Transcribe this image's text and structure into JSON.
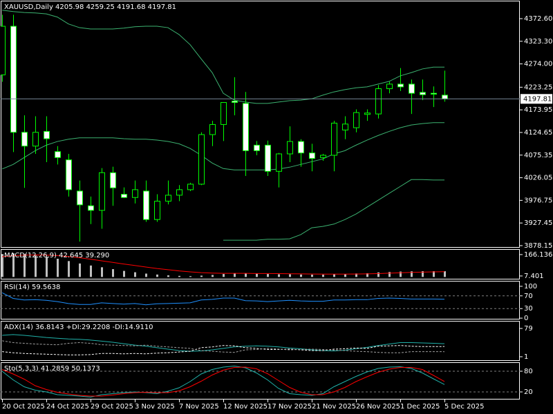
{
  "chart_data": [
    {
      "type": "candlestick",
      "title": "XAUUSD,Daily  4205.98 4259.25 4191.68 4197.81",
      "categories": [
        "20 Oct 2025",
        null,
        null,
        null,
        "24 Oct 2025",
        null,
        null,
        null,
        "29 Oct 2025",
        null,
        null,
        null,
        "3 Nov 2025",
        null,
        null,
        null,
        "7 Nov 2025",
        null,
        null,
        null,
        "12 Nov 2025",
        null,
        null,
        null,
        "17 Nov 2025",
        null,
        null,
        null,
        "21 Nov 2025",
        null,
        null,
        null,
        "26 Nov 2025",
        null,
        null,
        null,
        "1 Dec 2025",
        null,
        null,
        null,
        "5 Dec 2025"
      ],
      "open": [
        4250,
        4356,
        4125,
        4095,
        4127,
        4083,
        4065,
        3997,
        3965,
        3955,
        4037,
        3990,
        3983,
        3997,
        3935,
        3975,
        3988,
        4000,
        4012,
        4120,
        4142,
        4193,
        4188,
        4097,
        4097,
        4040,
        4078,
        4105,
        4080,
        4070,
        4075,
        4130,
        4135,
        4164,
        4165,
        4220,
        4230,
        4230,
        4212,
        4210,
        4205.98
      ],
      "high": [
        4381,
        4381,
        4162,
        4160,
        4160,
        4095,
        4078,
        4020,
        3985,
        4047,
        4050,
        4005,
        4020,
        4020,
        3990,
        4020,
        4010,
        4015,
        4125,
        4150,
        4190,
        4245,
        4213,
        4106,
        4107,
        4080,
        4138,
        4110,
        4100,
        4078,
        4150,
        4160,
        4175,
        4175,
        4228,
        4235,
        4265,
        4240,
        4240,
        4225,
        4259.25
      ],
      "low": [
        4235,
        4082,
        4004,
        4078,
        4060,
        4055,
        3985,
        3887,
        3925,
        3915,
        3965,
        3982,
        3970,
        3930,
        3930,
        3968,
        3975,
        3997,
        4010,
        4095,
        4106,
        4162,
        4030,
        4075,
        4030,
        4005,
        4060,
        4050,
        4040,
        4063,
        4040,
        4110,
        4125,
        4150,
        4155,
        4210,
        4215,
        4165,
        4195,
        4180,
        4191.68
      ],
      "close": [
        4356,
        4125,
        4095,
        4125,
        4111,
        4070,
        4000,
        3967,
        3955,
        4037,
        4004,
        3983,
        4000,
        3935,
        3975,
        3988,
        4000,
        4012,
        4120,
        4142,
        4190,
        4190,
        4085,
        4085,
        4040,
        4078,
        4105,
        4080,
        4068,
        4075,
        4145,
        4143,
        4168,
        4167,
        4220,
        4230,
        4224,
        4210,
        4207,
        4208,
        4197.81
      ],
      "bull_color": "#000000",
      "bear_color": "#ffffff",
      "wick_color": "#00ff00",
      "bands": {
        "color": "#3cb371",
        "upper": [
          4391,
          4388,
          4386,
          4385,
          4383,
          4376,
          4361,
          4353,
          4350,
          4350,
          4350,
          4352,
          4355,
          4356,
          4356,
          4353,
          4338,
          4316,
          4285,
          4255,
          4210,
          4195,
          4191,
          4188,
          4188,
          4191,
          4194,
          4195,
          4198,
          4206,
          4213,
          4218,
          4222,
          4224,
          4230,
          4236,
          4248,
          4255,
          4263,
          4267,
          4267
        ],
        "middle": [
          4045,
          4055,
          4070,
          4085,
          4097,
          4105,
          4110,
          4113,
          4113,
          4113,
          4113,
          4111,
          4110,
          4110,
          4108,
          4105,
          4100,
          4090,
          4075,
          4058,
          4046,
          4043,
          4043,
          4043,
          4043,
          4045,
          4049,
          4055,
          4061,
          4067,
          4078,
          4085,
          4097,
          4108,
          4118,
          4127,
          4135,
          4141,
          4144,
          4146,
          4146
        ],
        "lower": [
          null,
          null,
          null,
          null,
          null,
          null,
          null,
          null,
          null,
          null,
          null,
          null,
          null,
          null,
          null,
          null,
          null,
          null,
          null,
          null,
          3890,
          3890,
          3890,
          3890,
          3892,
          3892,
          3893,
          3902,
          3917,
          3920,
          3925,
          3935,
          3947,
          3962,
          3977,
          3992,
          4007,
          4022,
          4022,
          4021,
          4021
        ]
      },
      "price_line_color": "#778899",
      "ylim": [
        3875.1,
        4410.2
      ],
      "yticks": [
        {
          "value": 4372.6,
          "label": "4372.60"
        },
        {
          "value": 4323.3,
          "label": "4323.30"
        },
        {
          "value": 4274,
          "label": "4274.00"
        },
        4223.25,
        4173.95,
        4124.65,
        4075.35,
        4026.05,
        3976.75,
        3927.45,
        3878.15
      ]
    },
    {
      "type": "macd",
      "title": "MACD(12,26,9) 42.645 39.290",
      "series": [
        {
          "kind": "histogram",
          "color": "#c0c0c0",
          "values": [
            170,
            175,
            170,
            160,
            150,
            135,
            118,
            100,
            85,
            72,
            58,
            45,
            35,
            25,
            18,
            12,
            8,
            6,
            10,
            15,
            22,
            28,
            26,
            24,
            22,
            20,
            20,
            18,
            17,
            17,
            20,
            22,
            26,
            28,
            34,
            37,
            40,
            42,
            43,
            43,
            42.645
          ]
        },
        {
          "kind": "line",
          "color": "#ff0000",
          "values": [
            150,
            158,
            162,
            163,
            162,
            158,
            152,
            143,
            132,
            120,
            108,
            96,
            85,
            74,
            63,
            54,
            45,
            38,
            32,
            29,
            27,
            27,
            27,
            26,
            26,
            25,
            24,
            23,
            22,
            21,
            21,
            21,
            22,
            23,
            25,
            28,
            31,
            34,
            36,
            38,
            39.29
          ]
        }
      ],
      "ylim": [
        -13.3,
        201.7
      ],
      "yticks": [
        166.136,
        7.401
      ]
    },
    {
      "type": "line",
      "title": "RSI(14) 59.5638",
      "series": [
        {
          "color": "#1e90ff",
          "dashed": false,
          "values": [
            80,
            62,
            57,
            58,
            56,
            52,
            46,
            43,
            43,
            48,
            46,
            44,
            46,
            42,
            45,
            46,
            47,
            48,
            57,
            59,
            63,
            63,
            55,
            54,
            52,
            54,
            56,
            54,
            53,
            53,
            57,
            57,
            58,
            58,
            62,
            63,
            62,
            60,
            60,
            60,
            59.5638
          ]
        }
      ],
      "levels": [
        70,
        30
      ],
      "level_color": "#808080",
      "ylim": [
        -2,
        115
      ],
      "yticks": [
        100,
        70,
        30,
        0
      ]
    },
    {
      "type": "line",
      "title": "ADX(14) 36.8143 +DI:29.2208 -DI:14.9110",
      "series": [
        {
          "color": "#20b2aa",
          "dashed": false,
          "values": [
            60,
            62,
            60,
            57,
            54,
            52,
            50,
            49,
            47,
            44,
            41,
            37,
            33,
            30,
            26,
            22,
            18,
            16,
            17,
            20,
            24,
            28,
            30,
            31,
            30,
            28,
            25,
            23,
            20,
            18,
            17,
            19,
            23,
            27,
            32,
            36,
            40,
            40,
            39,
            38,
            36.8143
          ]
        },
        {
          "color": "#ffffff",
          "dashed": true,
          "values": [
            15,
            12,
            10,
            9,
            8,
            7,
            6,
            6,
            7,
            10,
            10,
            9,
            10,
            9,
            11,
            12,
            14,
            16,
            26,
            28,
            32,
            31,
            26,
            24,
            21,
            21,
            22,
            20,
            18,
            18,
            22,
            23,
            25,
            24,
            30,
            31,
            32,
            30,
            29,
            29,
            29.2208
          ]
        },
        {
          "color": "#a0a0a0",
          "dashed": true,
          "values": [
            45,
            40,
            38,
            36,
            35,
            34,
            38,
            40,
            38,
            34,
            33,
            32,
            31,
            33,
            30,
            28,
            26,
            24,
            18,
            16,
            14,
            13,
            20,
            21,
            24,
            22,
            20,
            21,
            22,
            21,
            19,
            18,
            16,
            15,
            13,
            12,
            12,
            15,
            15,
            15,
            14.911
          ]
        }
      ],
      "ylim": [
        -8.5,
        98
      ],
      "yticks": [
        79,
        1
      ]
    },
    {
      "type": "line",
      "title": "Sto(5,3,3) 41.2859 50.1373",
      "series": [
        {
          "color": "#20b2aa",
          "dashed": false,
          "values": [
            80,
            55,
            35,
            25,
            20,
            12,
            10,
            8,
            5,
            12,
            15,
            18,
            20,
            18,
            15,
            22,
            32,
            50,
            72,
            85,
            92,
            95,
            90,
            75,
            55,
            30,
            15,
            12,
            10,
            15,
            35,
            50,
            65,
            78,
            88,
            92,
            93,
            88,
            75,
            58,
            41.2859
          ]
        },
        {
          "color": "#ff0000",
          "dashed": false,
          "values": [
            85,
            72,
            57,
            38,
            27,
            19,
            14,
            10,
            8,
            8,
            11,
            15,
            18,
            19,
            18,
            18,
            23,
            35,
            51,
            69,
            83,
            91,
            92,
            87,
            73,
            53,
            33,
            19,
            12,
            12,
            20,
            33,
            50,
            64,
            77,
            86,
            91,
            91,
            85,
            68,
            50.1373
          ]
        }
      ],
      "levels": [
        80,
        20
      ],
      "level_color": "#808080",
      "ylim": [
        0,
        104
      ],
      "yticks": [
        80,
        20
      ]
    }
  ]
}
